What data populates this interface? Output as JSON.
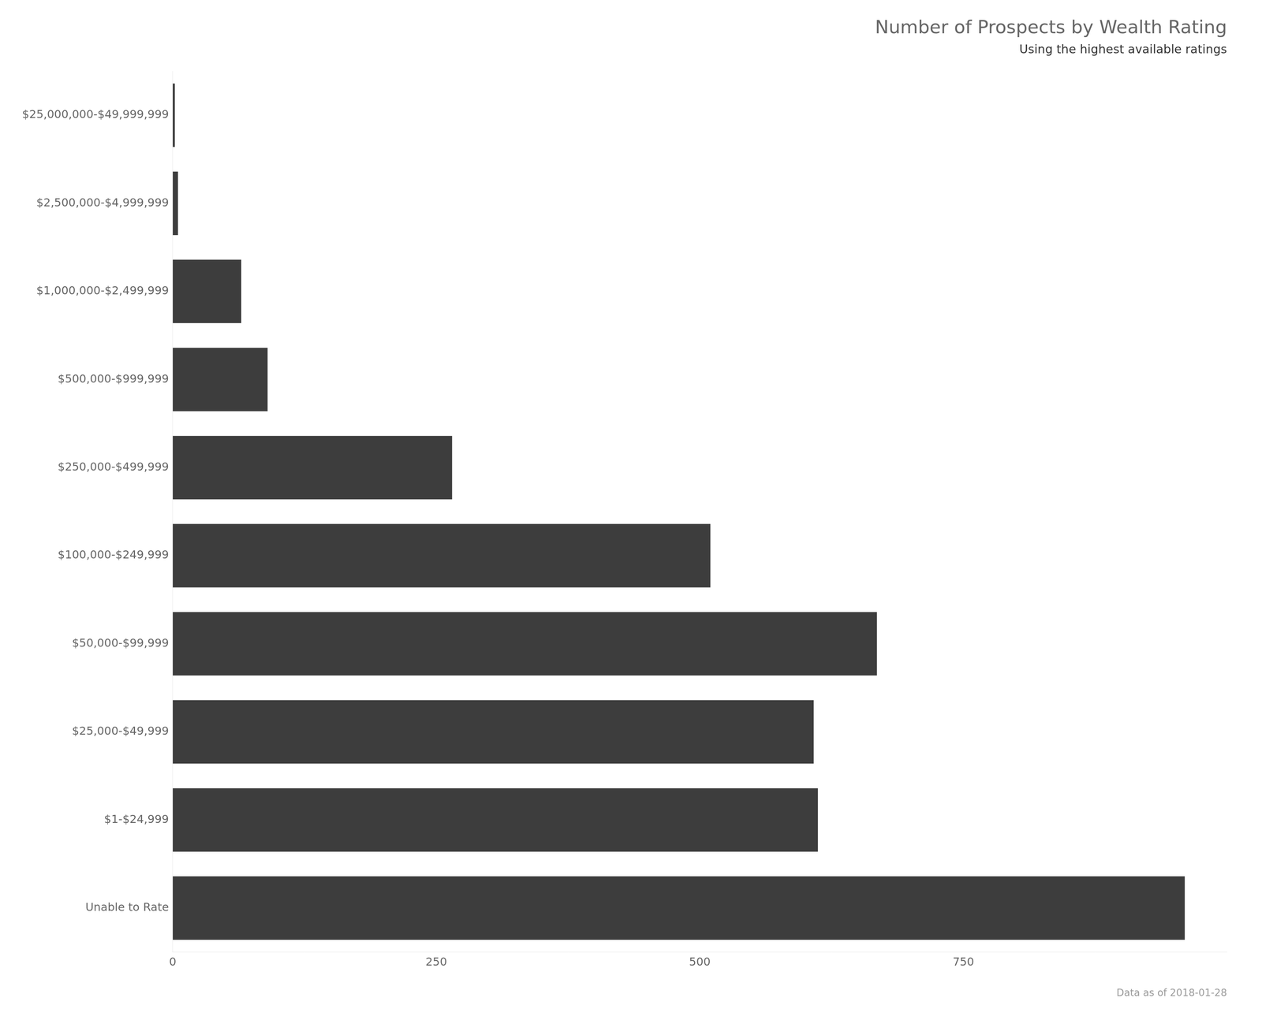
{
  "chart_data": {
    "type": "bar",
    "orientation": "horizontal",
    "title": "Number of Prospects by Wealth Rating",
    "subtitle": "Using the highest available ratings",
    "footer": "Data as of 2018-01-28",
    "categories": [
      "Unable to Rate",
      "$1-$24,999",
      "$25,000-$49,999",
      "$50,000-$99,999",
      "$100,000-$249,999",
      "$250,000-$499,999",
      "$500,000-$999,999",
      "$1,000,000-$2,499,999",
      "$2,500,000-$4,999,999",
      "$25,000,000-$49,999,999"
    ],
    "values": [
      960,
      612,
      608,
      668,
      510,
      265,
      90,
      65,
      5,
      2
    ],
    "color": "#3d3d3d",
    "xlim": [
      0,
      1000
    ],
    "xticks": [
      0,
      250,
      500,
      750
    ],
    "grid": false
  }
}
